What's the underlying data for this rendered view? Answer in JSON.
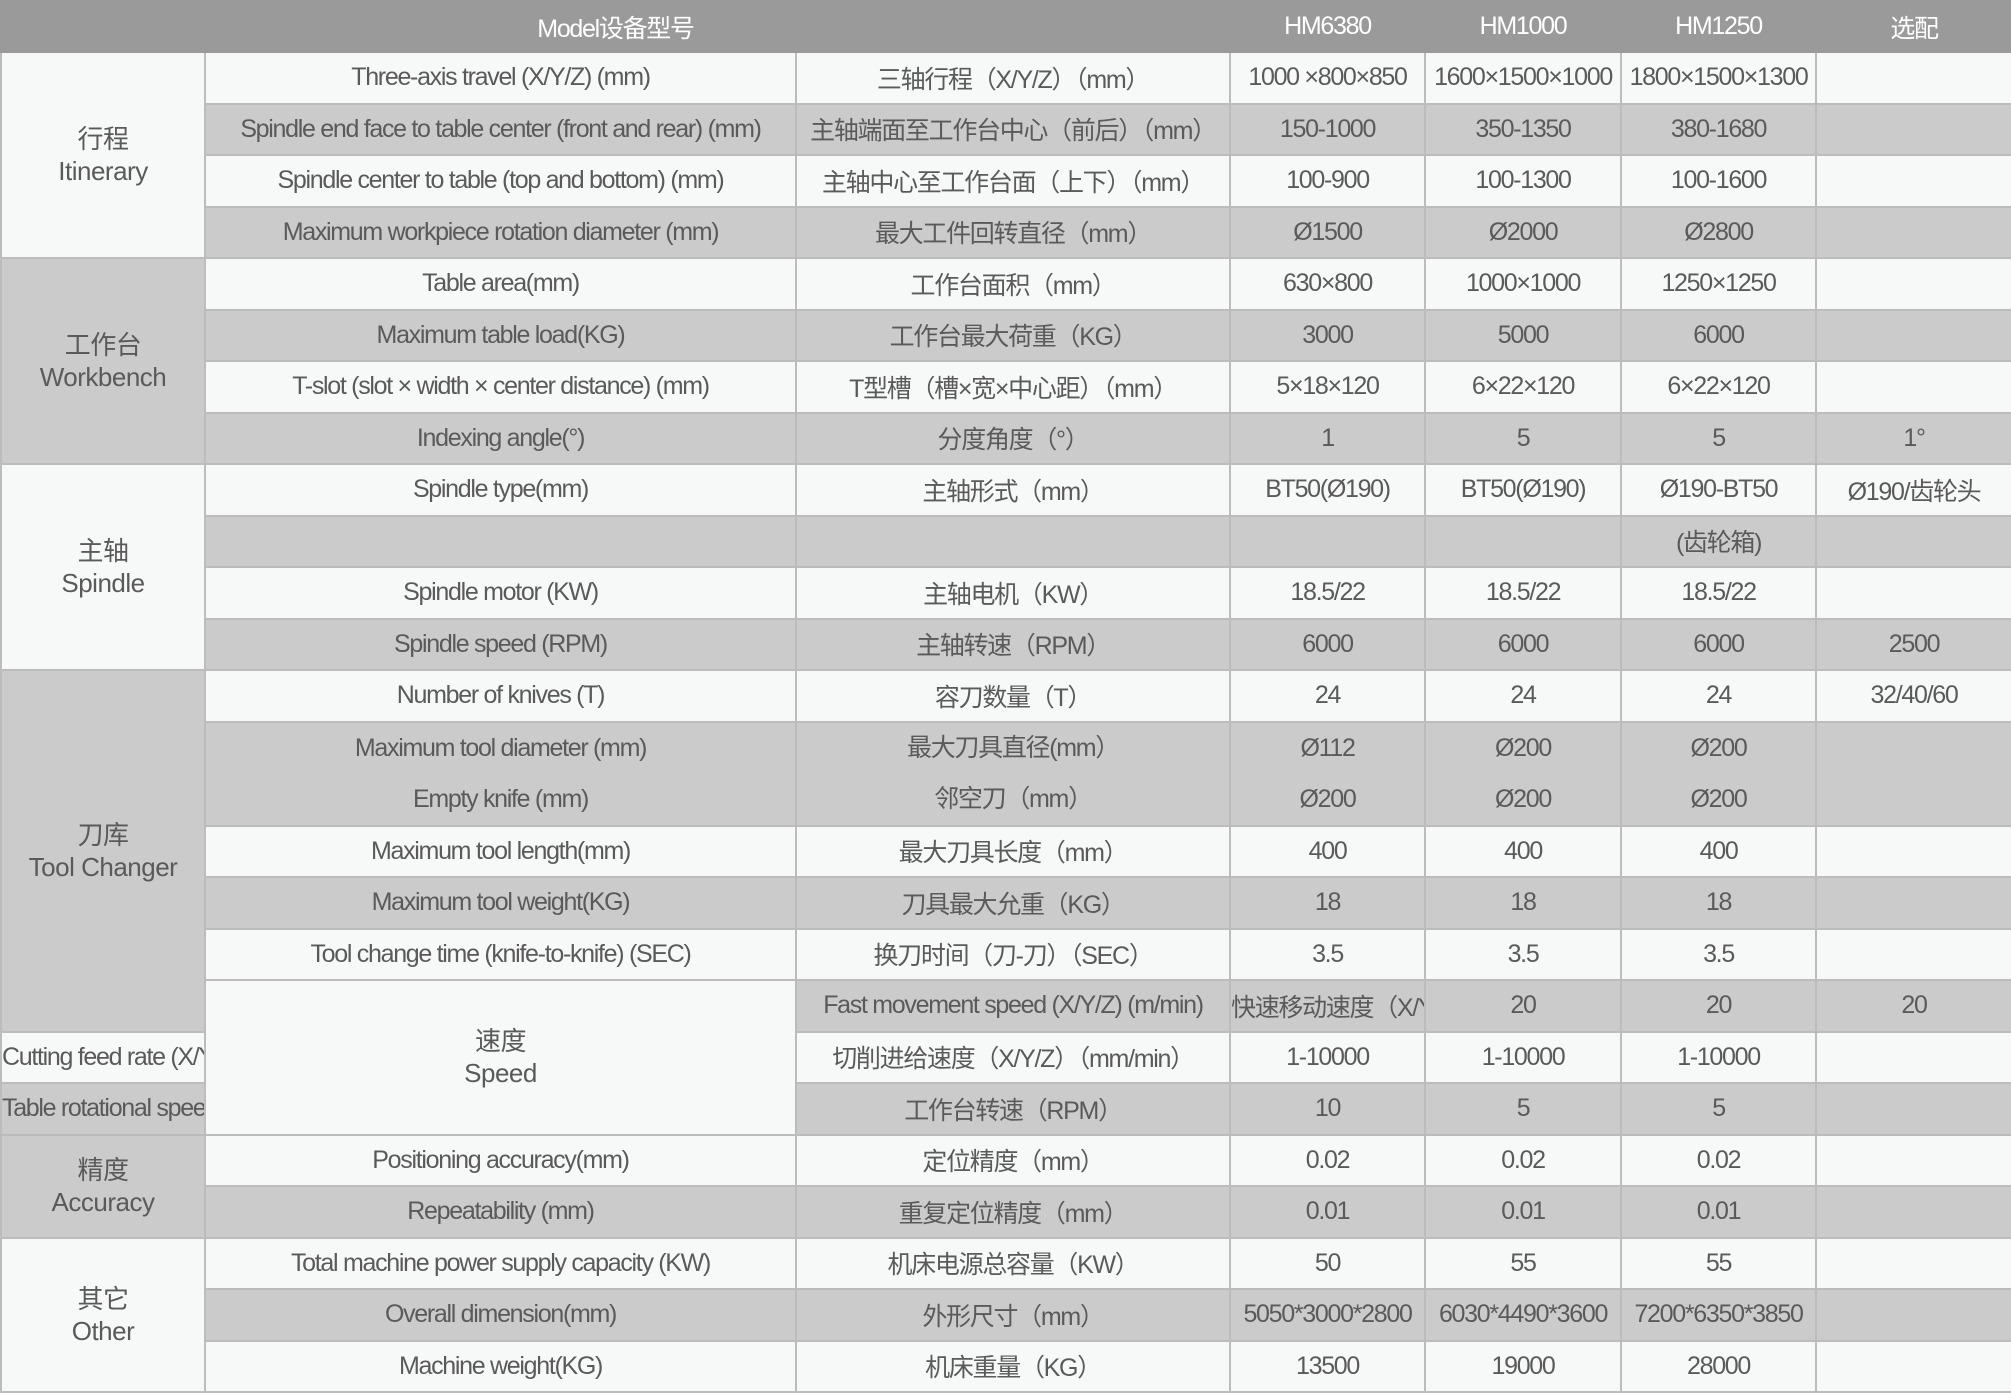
{
  "header": {
    "model_label": "Model设备型号",
    "models": [
      "HM6380",
      "HM1000",
      "HM1250",
      "选配"
    ]
  },
  "groups": [
    {
      "cn": "行程",
      "en": "Itinerary",
      "rows": [
        {
          "en": [
            "Three-axis travel (X/Y/Z) (mm)"
          ],
          "cn": [
            "三轴行程（X/Y/Z）（mm）"
          ],
          "vals": [
            "1000 ×800×850",
            "1600×1500×1000",
            "1800×1500×1300",
            ""
          ]
        },
        {
          "en": [
            "Spindle end face to table center (front and rear) (mm)"
          ],
          "cn": [
            "主轴端面至工作台中心（前后）（mm）"
          ],
          "vals": [
            "150-1000",
            "350-1350",
            "380-1680",
            ""
          ]
        },
        {
          "en": [
            "Spindle center to table (top and bottom) (mm)"
          ],
          "cn": [
            "主轴中心至工作台面（上下）（mm）"
          ],
          "vals": [
            "100-900",
            "100-1300",
            "100-1600",
            ""
          ]
        },
        {
          "en": [
            "Maximum workpiece rotation diameter (mm)"
          ],
          "cn": [
            "最大工件回转直径（mm）"
          ],
          "vals": [
            "Ø1500",
            "Ø2000",
            "Ø2800",
            ""
          ]
        }
      ]
    },
    {
      "cn": "工作台",
      "en": "Workbench",
      "rows": [
        {
          "en": [
            "Table area(mm)"
          ],
          "cn": [
            "工作台面积（mm）"
          ],
          "vals": [
            "630×800",
            "1000×1000",
            "1250×1250",
            ""
          ]
        },
        {
          "en": [
            "Maximum table load(KG)"
          ],
          "cn": [
            "工作台最大荷重（KG）"
          ],
          "vals": [
            "3000",
            "5000",
            "6000",
            ""
          ]
        },
        {
          "en": [
            "T-slot (slot × width × center distance) (mm)"
          ],
          "cn": [
            "T型槽（槽×宽×中心距）（mm）"
          ],
          "vals": [
            "5×18×120",
            "6×22×120",
            "6×22×120",
            ""
          ]
        },
        {
          "en": [
            "Indexing angle(°)"
          ],
          "cn": [
            "分度角度（°）"
          ],
          "vals": [
            "1",
            "5",
            "5",
            "1°"
          ]
        }
      ]
    },
    {
      "cn": "主轴",
      "en": "Spindle",
      "rows": [
        {
          "en": [
            "Spindle type(mm)"
          ],
          "cn": [
            "主轴形式（mm）"
          ],
          "vals": [
            "BT50(Ø190)",
            "BT50(Ø190)",
            "Ø190-BT50",
            "Ø190/齿轮头"
          ]
        },
        {
          "en": [
            ""
          ],
          "cn": [
            ""
          ],
          "vals": [
            "",
            "",
            "(齿轮箱)",
            ""
          ]
        },
        {
          "en": [
            "Spindle motor (KW)"
          ],
          "cn": [
            "主轴电机（KW）"
          ],
          "vals": [
            "18.5/22",
            "18.5/22",
            "18.5/22",
            ""
          ]
        },
        {
          "en": [
            "Spindle speed (RPM)"
          ],
          "cn": [
            "主轴转速（RPM）"
          ],
          "vals": [
            "6000",
            "6000",
            "6000",
            "2500"
          ]
        }
      ]
    },
    {
      "cn": "刀库",
      "en": "Tool Changer",
      "rows": [
        {
          "en": [
            "Number of knives (T)"
          ],
          "cn": [
            "容刀数量（T）"
          ],
          "vals": [
            "24",
            "24",
            "24",
            "32/40/60"
          ]
        },
        {
          "en": [
            "Maximum tool diameter (mm)",
            "Empty knife (mm)"
          ],
          "cn": [
            "最大刀具直径(mm）",
            "邻空刀（mm）"
          ],
          "vals": [
            [
              "Ø112",
              "Ø200"
            ],
            [
              "Ø200",
              "Ø200"
            ],
            [
              "Ø200",
              "Ø200"
            ],
            [
              ""
            ]
          ]
        },
        {
          "en": [
            "Maximum tool length(mm)"
          ],
          "cn": [
            "最大刀具长度（mm）"
          ],
          "vals": [
            "400",
            "400",
            "400",
            ""
          ]
        },
        {
          "en": [
            "Maximum tool weight(KG)"
          ],
          "cn": [
            "刀具最大允重（KG）"
          ],
          "vals": [
            "18",
            "18",
            "18",
            ""
          ]
        },
        {
          "en": [
            "Tool change time (knife-to-knife) (SEC)"
          ],
          "cn": [
            "换刀时间（刀-刀）（SEC）"
          ],
          "vals": [
            "3.5",
            "3.5",
            "3.5",
            ""
          ]
        }
      ]
    },
    {
      "cn": "速度",
      "en": "Speed",
      "rows": [
        {
          "en": [
            "Fast movement speed (X/Y/Z) (m/min)"
          ],
          "cn": [
            "快速移动速度（X/Y/Z）（m/min）"
          ],
          "vals": [
            "20",
            "20",
            "20",
            ""
          ]
        },
        {
          "en": [
            "Cutting feed rate (X/Y/Z) (mm/min)"
          ],
          "cn": [
            "切削进给速度（X/Y/Z）（mm/min）"
          ],
          "vals": [
            "1-10000",
            "1-10000",
            "1-10000",
            ""
          ]
        },
        {
          "en": [
            "Table rotational speed (RPM)"
          ],
          "cn": [
            "工作台转速（RPM）"
          ],
          "vals": [
            "10",
            "5",
            "5",
            ""
          ]
        }
      ]
    },
    {
      "cn": "精度",
      "en": "Accuracy",
      "rows": [
        {
          "en": [
            "Positioning accuracy(mm)"
          ],
          "cn": [
            "定位精度（mm）"
          ],
          "vals": [
            "0.02",
            "0.02",
            "0.02",
            ""
          ]
        },
        {
          "en": [
            "Repeatability (mm)"
          ],
          "cn": [
            "重复定位精度（mm）"
          ],
          "vals": [
            "0.01",
            "0.01",
            "0.01",
            ""
          ]
        }
      ]
    },
    {
      "cn": "其它",
      "en": "Other",
      "rows": [
        {
          "en": [
            "Total machine power supply capacity (KW)"
          ],
          "cn": [
            "机床电源总容量（KW）"
          ],
          "vals": [
            "50",
            "55",
            "55",
            ""
          ]
        },
        {
          "en": [
            "Overall dimension(mm)"
          ],
          "cn": [
            "外形尺寸（mm）"
          ],
          "vals": [
            "5050*3000*2800",
            "6030*4490*3600",
            "7200*6350*3850",
            ""
          ]
        },
        {
          "en": [
            "Machine weight(KG)"
          ],
          "cn": [
            "机床重量（KG）"
          ],
          "vals": [
            "13500",
            "19000",
            "28000",
            ""
          ]
        }
      ]
    }
  ]
}
